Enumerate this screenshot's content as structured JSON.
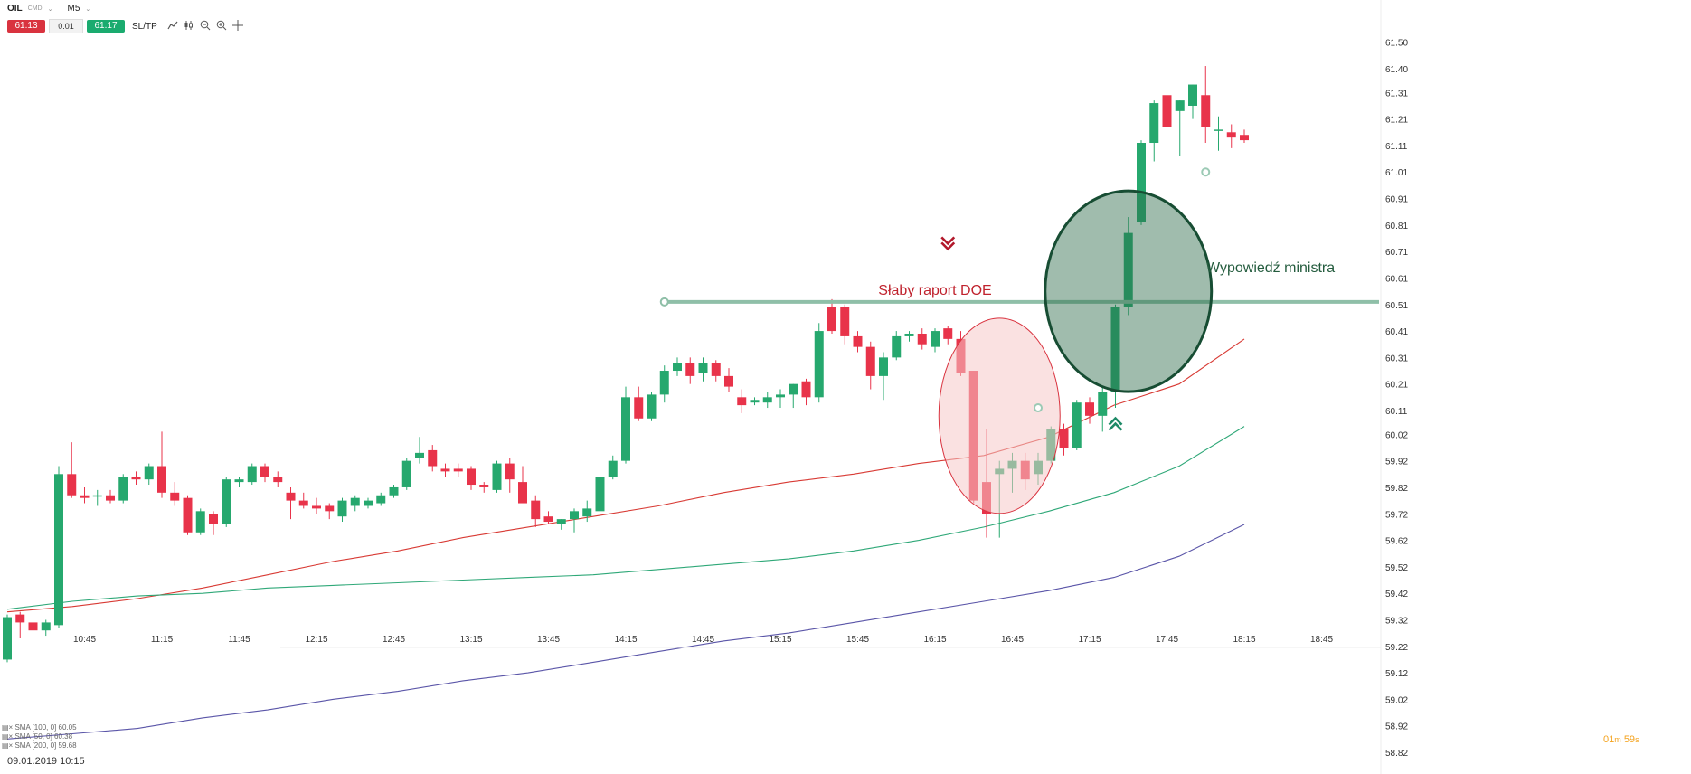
{
  "toolbar": {
    "symbol": "OIL",
    "symbol_sub": "CMD",
    "timeframe": "M5",
    "sell_price": "61.13",
    "volume": "0.01",
    "buy_price": "61.17",
    "sltp_label": "SL/TP",
    "icons": [
      "line-chart-icon",
      "candles-icon",
      "zoom-out-icon",
      "zoom-in-icon",
      "crosshair-icon"
    ]
  },
  "legend": [
    "SMA [100, 0] 60.05",
    "SMA [50, 0] 60.38",
    "SMA [200, 0] 59.68"
  ],
  "countdown": {
    "minutes": "01",
    "m_unit": "m",
    "seconds": "59",
    "s_unit": "s"
  },
  "date_label": "09.01.2019 10:15",
  "colors": {
    "bull": "#26a86e",
    "bear": "#e8334a",
    "sma50": "#d83a34",
    "sma100": "#2fa878",
    "sma200": "#5a55a8",
    "level": "#8fbfa8",
    "ellipse_red": "#f5c9c9",
    "ellipse_green": "#2d6b4a"
  },
  "annotations": {
    "level_label": "Słaby raport DOE",
    "minister_label": "Wypowiedź ministra"
  },
  "chart_data": {
    "type": "candlestick",
    "instrument": "OIL",
    "timeframe": "M5",
    "ylim": [
      58.82,
      61.55
    ],
    "y_ticks": [
      61.5,
      61.4,
      61.31,
      61.21,
      61.11,
      61.01,
      60.91,
      60.81,
      60.71,
      60.61,
      60.51,
      60.41,
      60.31,
      60.21,
      60.11,
      60.02,
      59.92,
      59.82,
      59.72,
      59.62,
      59.52,
      59.42,
      59.32,
      59.22,
      59.12,
      59.02,
      58.92,
      58.82
    ],
    "x_ticks": [
      "10:45",
      "11:15",
      "11:45",
      "12:15",
      "12:45",
      "13:15",
      "13:45",
      "14:15",
      "14:45",
      "15:15",
      "15:45",
      "16:15",
      "16:45",
      "17:15",
      "17:45",
      "18:15",
      "18:45"
    ],
    "candles": [
      {
        "o": 59.17,
        "h": 59.34,
        "l": 59.16,
        "c": 59.33
      },
      {
        "o": 59.34,
        "h": 59.35,
        "l": 59.25,
        "c": 59.31
      },
      {
        "o": 59.31,
        "h": 59.33,
        "l": 59.22,
        "c": 59.28
      },
      {
        "o": 59.28,
        "h": 59.32,
        "l": 59.26,
        "c": 59.31
      },
      {
        "o": 59.3,
        "h": 59.9,
        "l": 59.29,
        "c": 59.87
      },
      {
        "o": 59.87,
        "h": 59.99,
        "l": 59.78,
        "c": 59.79
      },
      {
        "o": 59.79,
        "h": 59.82,
        "l": 59.76,
        "c": 59.78
      },
      {
        "o": 59.79,
        "h": 59.81,
        "l": 59.75,
        "c": 59.79
      },
      {
        "o": 59.79,
        "h": 59.81,
        "l": 59.76,
        "c": 59.77
      },
      {
        "o": 59.77,
        "h": 59.87,
        "l": 59.76,
        "c": 59.86
      },
      {
        "o": 59.86,
        "h": 59.88,
        "l": 59.83,
        "c": 59.85
      },
      {
        "o": 59.85,
        "h": 59.91,
        "l": 59.83,
        "c": 59.9
      },
      {
        "o": 59.9,
        "h": 60.03,
        "l": 59.78,
        "c": 59.8
      },
      {
        "o": 59.8,
        "h": 59.84,
        "l": 59.75,
        "c": 59.77
      },
      {
        "o": 59.78,
        "h": 59.79,
        "l": 59.64,
        "c": 59.65
      },
      {
        "o": 59.65,
        "h": 59.74,
        "l": 59.64,
        "c": 59.73
      },
      {
        "o": 59.72,
        "h": 59.73,
        "l": 59.64,
        "c": 59.68
      },
      {
        "o": 59.68,
        "h": 59.86,
        "l": 59.67,
        "c": 59.85
      },
      {
        "o": 59.84,
        "h": 59.86,
        "l": 59.82,
        "c": 59.85
      },
      {
        "o": 59.84,
        "h": 59.91,
        "l": 59.83,
        "c": 59.9
      },
      {
        "o": 59.9,
        "h": 59.91,
        "l": 59.84,
        "c": 59.86
      },
      {
        "o": 59.86,
        "h": 59.88,
        "l": 59.82,
        "c": 59.84
      },
      {
        "o": 59.8,
        "h": 59.82,
        "l": 59.7,
        "c": 59.77
      },
      {
        "o": 59.77,
        "h": 59.8,
        "l": 59.74,
        "c": 59.75
      },
      {
        "o": 59.75,
        "h": 59.78,
        "l": 59.72,
        "c": 59.74
      },
      {
        "o": 59.75,
        "h": 59.76,
        "l": 59.7,
        "c": 59.73
      },
      {
        "o": 59.71,
        "h": 59.78,
        "l": 59.69,
        "c": 59.77
      },
      {
        "o": 59.75,
        "h": 59.79,
        "l": 59.73,
        "c": 59.78
      },
      {
        "o": 59.75,
        "h": 59.78,
        "l": 59.74,
        "c": 59.77
      },
      {
        "o": 59.76,
        "h": 59.8,
        "l": 59.75,
        "c": 59.79
      },
      {
        "o": 59.79,
        "h": 59.83,
        "l": 59.78,
        "c": 59.82
      },
      {
        "o": 59.82,
        "h": 59.93,
        "l": 59.81,
        "c": 59.92
      },
      {
        "o": 59.93,
        "h": 60.01,
        "l": 59.91,
        "c": 59.95
      },
      {
        "o": 59.96,
        "h": 59.98,
        "l": 59.88,
        "c": 59.9
      },
      {
        "o": 59.89,
        "h": 59.91,
        "l": 59.86,
        "c": 59.88
      },
      {
        "o": 59.89,
        "h": 59.91,
        "l": 59.86,
        "c": 59.88
      },
      {
        "o": 59.89,
        "h": 59.9,
        "l": 59.81,
        "c": 59.83
      },
      {
        "o": 59.83,
        "h": 59.84,
        "l": 59.8,
        "c": 59.82
      },
      {
        "o": 59.81,
        "h": 59.92,
        "l": 59.8,
        "c": 59.91
      },
      {
        "o": 59.91,
        "h": 59.93,
        "l": 59.8,
        "c": 59.85
      },
      {
        "o": 59.84,
        "h": 59.9,
        "l": 59.77,
        "c": 59.76
      },
      {
        "o": 59.77,
        "h": 59.79,
        "l": 59.67,
        "c": 59.7
      },
      {
        "o": 59.71,
        "h": 59.73,
        "l": 59.68,
        "c": 59.69
      },
      {
        "o": 59.68,
        "h": 59.7,
        "l": 59.66,
        "c": 59.7
      },
      {
        "o": 59.7,
        "h": 59.74,
        "l": 59.65,
        "c": 59.73
      },
      {
        "o": 59.71,
        "h": 59.77,
        "l": 59.69,
        "c": 59.74
      },
      {
        "o": 59.73,
        "h": 59.88,
        "l": 59.71,
        "c": 59.86
      },
      {
        "o": 59.86,
        "h": 59.94,
        "l": 59.85,
        "c": 59.92
      },
      {
        "o": 59.92,
        "h": 60.2,
        "l": 59.91,
        "c": 60.16
      },
      {
        "o": 60.16,
        "h": 60.2,
        "l": 60.07,
        "c": 60.08
      },
      {
        "o": 60.08,
        "h": 60.18,
        "l": 60.07,
        "c": 60.17
      },
      {
        "o": 60.17,
        "h": 60.28,
        "l": 60.14,
        "c": 60.26
      },
      {
        "o": 60.26,
        "h": 60.31,
        "l": 60.24,
        "c": 60.29
      },
      {
        "o": 60.29,
        "h": 60.31,
        "l": 60.21,
        "c": 60.24
      },
      {
        "o": 60.25,
        "h": 60.31,
        "l": 60.22,
        "c": 60.29
      },
      {
        "o": 60.29,
        "h": 60.3,
        "l": 60.22,
        "c": 60.24
      },
      {
        "o": 60.24,
        "h": 60.27,
        "l": 60.18,
        "c": 60.2
      },
      {
        "o": 60.16,
        "h": 60.19,
        "l": 60.1,
        "c": 60.13
      },
      {
        "o": 60.14,
        "h": 60.16,
        "l": 60.13,
        "c": 60.15
      },
      {
        "o": 60.14,
        "h": 60.18,
        "l": 60.12,
        "c": 60.16
      },
      {
        "o": 60.16,
        "h": 60.19,
        "l": 60.12,
        "c": 60.17
      },
      {
        "o": 60.17,
        "h": 60.21,
        "l": 60.12,
        "c": 60.21
      },
      {
        "o": 60.22,
        "h": 60.23,
        "l": 60.13,
        "c": 60.16
      },
      {
        "o": 60.16,
        "h": 60.44,
        "l": 60.14,
        "c": 60.41
      },
      {
        "o": 60.5,
        "h": 60.53,
        "l": 60.4,
        "c": 60.41
      },
      {
        "o": 60.5,
        "h": 60.51,
        "l": 60.36,
        "c": 60.39
      },
      {
        "o": 60.39,
        "h": 60.41,
        "l": 60.33,
        "c": 60.35
      },
      {
        "o": 60.35,
        "h": 60.37,
        "l": 60.19,
        "c": 60.24
      },
      {
        "o": 60.24,
        "h": 60.33,
        "l": 60.15,
        "c": 60.31
      },
      {
        "o": 60.31,
        "h": 60.41,
        "l": 60.3,
        "c": 60.39
      },
      {
        "o": 60.39,
        "h": 60.41,
        "l": 60.37,
        "c": 60.4
      },
      {
        "o": 60.4,
        "h": 60.42,
        "l": 60.34,
        "c": 60.36
      },
      {
        "o": 60.35,
        "h": 60.42,
        "l": 60.33,
        "c": 60.41
      },
      {
        "o": 60.42,
        "h": 60.43,
        "l": 60.36,
        "c": 60.38
      },
      {
        "o": 60.38,
        "h": 60.41,
        "l": 60.24,
        "c": 60.25
      },
      {
        "o": 60.26,
        "h": 60.26,
        "l": 59.76,
        "c": 59.77
      },
      {
        "o": 59.84,
        "h": 60.04,
        "l": 59.63,
        "c": 59.72
      },
      {
        "o": 59.87,
        "h": 59.92,
        "l": 59.63,
        "c": 59.89
      },
      {
        "o": 59.89,
        "h": 59.95,
        "l": 59.8,
        "c": 59.92
      },
      {
        "o": 59.92,
        "h": 59.95,
        "l": 59.81,
        "c": 59.85
      },
      {
        "o": 59.87,
        "h": 59.95,
        "l": 59.83,
        "c": 59.92
      },
      {
        "o": 59.92,
        "h": 60.05,
        "l": 59.91,
        "c": 60.04
      },
      {
        "o": 60.04,
        "h": 60.06,
        "l": 59.94,
        "c": 59.97
      },
      {
        "o": 59.97,
        "h": 60.15,
        "l": 59.96,
        "c": 60.14
      },
      {
        "o": 60.14,
        "h": 60.16,
        "l": 60.06,
        "c": 60.09
      },
      {
        "o": 60.09,
        "h": 60.2,
        "l": 60.03,
        "c": 60.18
      },
      {
        "o": 60.18,
        "h": 60.51,
        "l": 60.12,
        "c": 60.5
      },
      {
        "o": 60.5,
        "h": 60.84,
        "l": 60.47,
        "c": 60.78
      },
      {
        "o": 60.82,
        "h": 61.13,
        "l": 60.81,
        "c": 61.12
      },
      {
        "o": 61.12,
        "h": 61.28,
        "l": 61.05,
        "c": 61.27
      },
      {
        "o": 61.3,
        "h": 61.55,
        "l": 61.18,
        "c": 61.18
      },
      {
        "o": 61.24,
        "h": 61.28,
        "l": 61.07,
        "c": 61.28
      },
      {
        "o": 61.26,
        "h": 61.34,
        "l": 61.21,
        "c": 61.34
      },
      {
        "o": 61.3,
        "h": 61.41,
        "l": 61.12,
        "c": 61.18
      },
      {
        "o": 61.17,
        "h": 61.22,
        "l": 61.09,
        "c": 61.17
      },
      {
        "o": 61.16,
        "h": 61.19,
        "l": 61.1,
        "c": 61.14
      },
      {
        "o": 61.15,
        "h": 61.17,
        "l": 61.12,
        "c": 61.13
      }
    ],
    "series": [
      {
        "name": "SMA [50, 0] 60.38",
        "values": [
          59.35,
          59.37,
          59.4,
          59.44,
          59.49,
          59.54,
          59.58,
          59.63,
          59.67,
          59.71,
          59.75,
          59.8,
          59.84,
          59.87,
          59.91,
          59.94,
          60.01,
          60.13,
          60.21,
          60.38
        ]
      },
      {
        "name": "SMA [100, 0] 60.05",
        "values": [
          59.36,
          59.39,
          59.41,
          59.42,
          59.44,
          59.45,
          59.46,
          59.47,
          59.48,
          59.49,
          59.51,
          59.53,
          59.55,
          59.58,
          59.62,
          59.67,
          59.73,
          59.8,
          59.9,
          60.05
        ]
      },
      {
        "name": "SMA [200, 0] 59.68",
        "values": [
          58.87,
          58.89,
          58.91,
          58.95,
          58.98,
          59.02,
          59.05,
          59.09,
          59.12,
          59.16,
          59.2,
          59.24,
          59.27,
          59.31,
          59.35,
          59.39,
          59.43,
          59.48,
          59.56,
          59.68
        ]
      }
    ],
    "annotations": [
      {
        "type": "horizontal_level",
        "value": 60.52,
        "label": "Słaby raport DOE"
      },
      {
        "type": "ellipse",
        "label": "Wypowiedź ministra"
      }
    ]
  }
}
